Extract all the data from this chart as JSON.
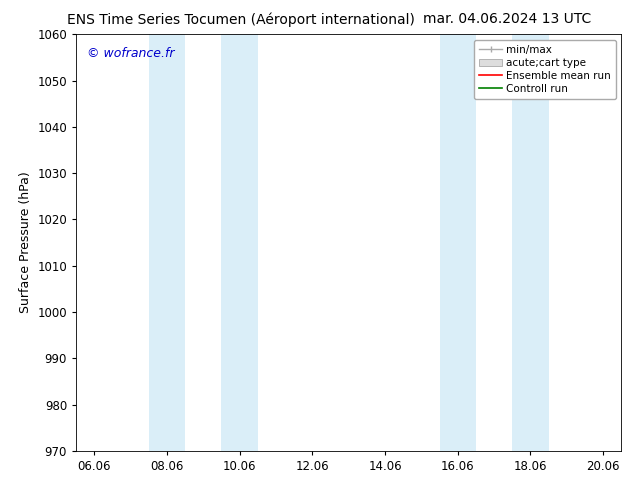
{
  "title_left": "ENS Time Series Tocumen (Aéroport international)",
  "title_right": "mar. 04.06.2024 13 UTC",
  "ylabel": "Surface Pressure (hPa)",
  "watermark": "© wofrance.fr",
  "ylim": [
    970,
    1060
  ],
  "yticks": [
    970,
    980,
    990,
    1000,
    1010,
    1020,
    1030,
    1040,
    1050,
    1060
  ],
  "xtick_labels": [
    "06.06",
    "08.06",
    "10.06",
    "12.06",
    "14.06",
    "16.06",
    "18.06",
    "20.06"
  ],
  "xtick_positions": [
    0,
    2,
    4,
    6,
    8,
    10,
    12,
    14
  ],
  "xmin": -0.5,
  "xmax": 14.5,
  "shaded_bands": [
    {
      "xmin": 1.5,
      "xmax": 2.5
    },
    {
      "xmin": 3.5,
      "xmax": 4.5
    },
    {
      "xmin": 9.5,
      "xmax": 10.5
    },
    {
      "xmin": 11.5,
      "xmax": 12.5
    }
  ],
  "shaded_color": "#daeef8",
  "background_color": "#ffffff",
  "title_fontsize": 10,
  "label_fontsize": 9,
  "tick_fontsize": 8.5,
  "watermark_fontsize": 9,
  "legend_fontsize": 7.5
}
